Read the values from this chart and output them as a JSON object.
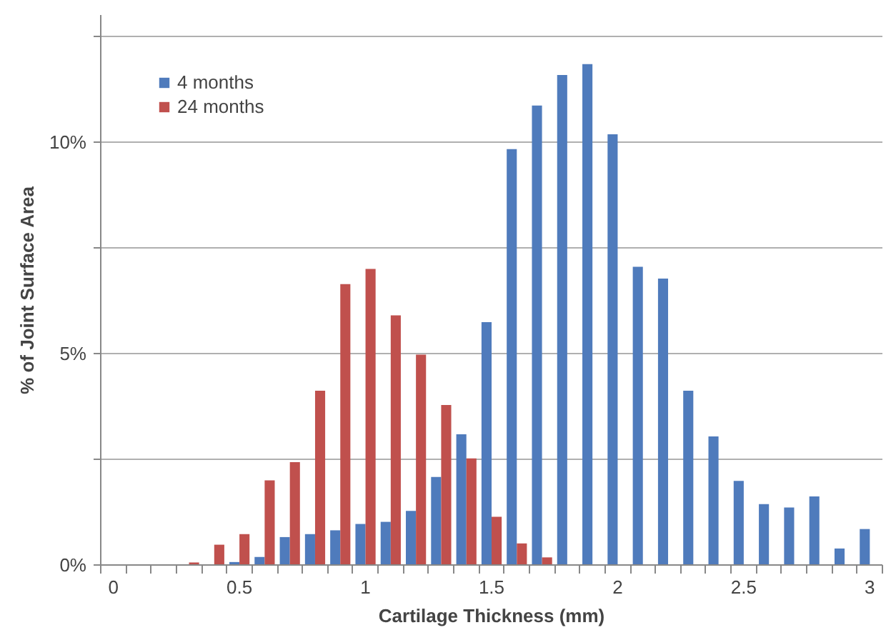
{
  "chart_data": {
    "type": "bar",
    "xlabel": "Cartilage Thickness (mm)",
    "ylabel": "% of Joint Surface Area",
    "categories": [
      "0",
      null,
      null,
      null,
      null,
      "0.5",
      null,
      null,
      null,
      null,
      "1",
      null,
      null,
      null,
      null,
      "1.5",
      null,
      null,
      null,
      null,
      "2",
      null,
      null,
      null,
      null,
      "2.5",
      null,
      null,
      null,
      null,
      "3"
    ],
    "series": [
      {
        "name": "4 months",
        "color": "#4f7bbc",
        "values": [
          0,
          0,
          0,
          0,
          0,
          0.07,
          0.19,
          0.66,
          0.73,
          0.82,
          0.97,
          1.02,
          1.28,
          2.08,
          3.09,
          5.74,
          9.83,
          10.86,
          11.58,
          11.84,
          10.18,
          7.05,
          6.77,
          4.12,
          3.04,
          1.99,
          1.44,
          1.36,
          1.62,
          0.39,
          0.85
        ]
      },
      {
        "name": "24 months",
        "color": "#c0504d",
        "values": [
          0,
          0,
          0,
          0.06,
          0.48,
          0.73,
          2.0,
          2.43,
          4.12,
          6.64,
          7.0,
          5.9,
          4.97,
          3.78,
          2.52,
          1.14,
          0.51,
          0.18,
          0,
          0,
          0,
          0,
          0,
          0,
          0,
          0,
          0,
          0,
          0,
          0,
          0
        ]
      }
    ],
    "ylim": [
      0,
      13
    ],
    "yticks": [
      {
        "value": 0,
        "label": "0%"
      },
      {
        "value": 2.5,
        "label": null
      },
      {
        "value": 5,
        "label": "5%"
      },
      {
        "value": 7.5,
        "label": null
      },
      {
        "value": 10,
        "label": "10%"
      },
      {
        "value": 12.5,
        "label": null
      }
    ],
    "grid": "y",
    "legend": "top left"
  }
}
